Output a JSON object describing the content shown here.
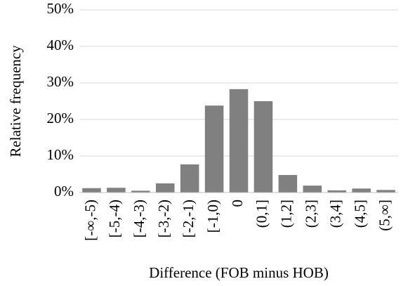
{
  "chart_data": {
    "type": "bar",
    "x_label": "Difference (FOB minus HOB)",
    "y_label": "Relative frequency",
    "categories": [
      "[-∞,-5)",
      "[-5,-4)",
      "[-4,-3)",
      "[-3,-2)",
      "[-2,-1)",
      "[-1,0)",
      "0",
      "(0,1]",
      "(1,2]",
      "(2,3]",
      "(3,4]",
      "(4,5]",
      "(5,∞]"
    ],
    "values": [
      1.2,
      1.3,
      0.5,
      2.5,
      7.7,
      23.8,
      28.3,
      25.0,
      4.8,
      1.9,
      0.6,
      1.1,
      0.7
    ],
    "color": "#808080",
    "ylim": [
      0,
      50
    ],
    "yticks": [
      {
        "value": 0,
        "label": "0%"
      },
      {
        "value": 10,
        "label": "10%"
      },
      {
        "value": 20,
        "label": "20%"
      },
      {
        "value": 30,
        "label": "30%"
      },
      {
        "value": 40,
        "label": "40%"
      },
      {
        "value": 50,
        "label": "50%"
      }
    ],
    "grid": true
  }
}
